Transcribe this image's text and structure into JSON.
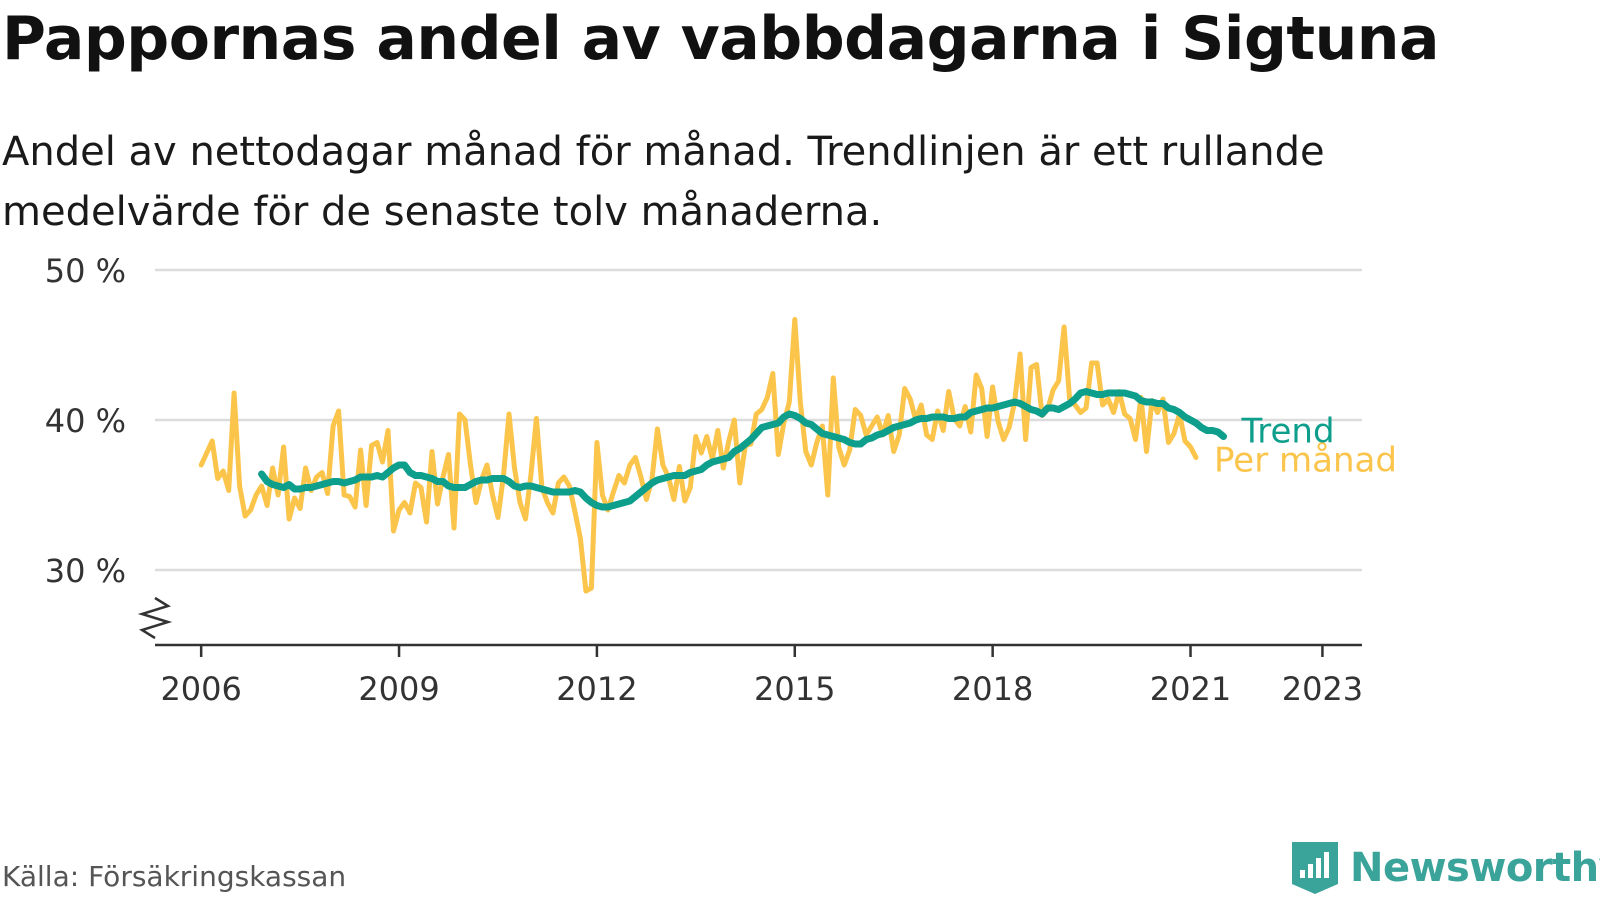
{
  "title": "Pappornas andel av vabbdagarna i Sigtuna",
  "subtitle": "Andel av nettodagar månad för månad. Trendlinjen är ett rullande medelvärde för de senaste tolv månaderna.",
  "source": "Källa: Försäkringskassan",
  "brand": "Newsworthy",
  "colors": {
    "trend": "#0d9e8c",
    "monthly": "#fbc44b",
    "grid": "#dcdcdc",
    "axis": "#333333",
    "brand": "#3aa39a"
  },
  "chart_data": {
    "type": "line",
    "x_unit": "year",
    "x_start": 2006.0,
    "x_step": 0.0833333,
    "ylim": [
      25,
      50
    ],
    "xlim": [
      2005.3,
      2023.6
    ],
    "yticks": [
      30,
      40,
      50
    ],
    "ytick_labels": [
      "30 %",
      "40 %",
      "50 %"
    ],
    "xticks": [
      2006,
      2009,
      2012,
      2015,
      2018,
      2021,
      2023
    ],
    "xtick_labels": [
      "2006",
      "2009",
      "2012",
      "2015",
      "2018",
      "2021",
      "2023"
    ],
    "axis_break": true,
    "grid": true,
    "series": [
      {
        "name": "Per månad",
        "color": "#fbc44b",
        "values": [
          37,
          37.8,
          38.6,
          36.1,
          36.6,
          35.3,
          41.8,
          35.6,
          33.6,
          34.0,
          35.0,
          35.6,
          34.3,
          36.8,
          35.0,
          38.2,
          33.4,
          34.8,
          34.1,
          36.8,
          35.3,
          36.2,
          36.5,
          35.1,
          39.6,
          40.6,
          35.0,
          34.9,
          34.2,
          38.0,
          34.3,
          38.3,
          38.5,
          37.2,
          39.3,
          32.6,
          34.0,
          34.5,
          33.8,
          35.8,
          35.5,
          33.2,
          37.9,
          34.4,
          36.2,
          37.7,
          32.8,
          40.4,
          40.0,
          37.0,
          34.5,
          36.0,
          37.0,
          35.0,
          33.5,
          36.3,
          40.4,
          36.8,
          34.5,
          33.4,
          36.4,
          40.1,
          35.5,
          34.5,
          33.8,
          35.8,
          36.2,
          35.6,
          33.9,
          32.1,
          28.6,
          28.8,
          38.5,
          35.0,
          34.0,
          35.2,
          36.3,
          35.8,
          37.0,
          37.5,
          36.2,
          34.7,
          36.0,
          39.4,
          37.0,
          36.2,
          34.7,
          36.9,
          34.6,
          35.5,
          38.9,
          37.8,
          38.9,
          37.4,
          39.3,
          36.8,
          38.6,
          40.0,
          35.8,
          38.3,
          38.4,
          40.4,
          40.7,
          41.5,
          43.1,
          37.7,
          39.8,
          41.2,
          46.7,
          41.2,
          37.9,
          37.0,
          38.5,
          39.6,
          35.0,
          42.8,
          38.2,
          37.0,
          38.0,
          40.7,
          40.3,
          39.0,
          39.6,
          40.2,
          39.0,
          40.3,
          37.9,
          39.0,
          42.1,
          41.4,
          40.0,
          41.0,
          39.0,
          38.7,
          40.6,
          39.3,
          41.9,
          40.1,
          39.6,
          40.9,
          39.2,
          43.0,
          42.1,
          38.9,
          42.2,
          39.9,
          38.7,
          39.5,
          41.2,
          44.4,
          38.7,
          43.5,
          43.7,
          40.3,
          40.7,
          42.0,
          42.6,
          46.2,
          41.4,
          41.0,
          40.5,
          40.8,
          43.8,
          43.8,
          41.0,
          41.4,
          40.5,
          41.9,
          40.4,
          40.1,
          38.7,
          41.5,
          37.9,
          41.3,
          40.5,
          41.4,
          38.5,
          39.1,
          40.4,
          38.6,
          38.2,
          37.5
        ]
      },
      {
        "name": "Trend",
        "color": "#0d9e8c",
        "start_index": 11,
        "values": [
          36.4,
          35.9,
          35.7,
          35.6,
          35.5,
          35.7,
          35.4,
          35.4,
          35.5,
          35.5,
          35.6,
          35.7,
          35.8,
          35.9,
          35.9,
          35.8,
          35.9,
          36.0,
          36.2,
          36.2,
          36.2,
          36.3,
          36.2,
          36.5,
          36.8,
          37.0,
          37.0,
          36.5,
          36.3,
          36.3,
          36.2,
          36.1,
          35.9,
          35.9,
          35.6,
          35.5,
          35.5,
          35.5,
          35.7,
          35.9,
          36.0,
          36.0,
          36.1,
          36.1,
          36.1,
          35.9,
          35.6,
          35.5,
          35.6,
          35.6,
          35.5,
          35.4,
          35.3,
          35.2,
          35.2,
          35.2,
          35.2,
          35.3,
          35.2,
          34.8,
          34.5,
          34.3,
          34.2,
          34.2,
          34.3,
          34.4,
          34.5,
          34.6,
          34.9,
          35.2,
          35.5,
          35.8,
          36.0,
          36.1,
          36.2,
          36.3,
          36.3,
          36.3,
          36.5,
          36.6,
          36.7,
          37.0,
          37.2,
          37.3,
          37.4,
          37.5,
          37.9,
          38.1,
          38.4,
          38.7,
          39.1,
          39.5,
          39.6,
          39.7,
          39.8,
          40.2,
          40.4,
          40.3,
          40.1,
          39.8,
          39.7,
          39.4,
          39.1,
          39.0,
          38.9,
          38.8,
          38.7,
          38.5,
          38.4,
          38.4,
          38.7,
          38.8,
          39.0,
          39.1,
          39.3,
          39.5,
          39.6,
          39.7,
          39.8,
          40.0,
          40.1,
          40.1,
          40.2,
          40.2,
          40.2,
          40.1,
          40.1,
          40.2,
          40.2,
          40.5,
          40.6,
          40.7,
          40.8,
          40.8,
          40.9,
          41.0,
          41.1,
          41.2,
          41.1,
          40.9,
          40.7,
          40.6,
          40.4,
          40.8,
          40.8,
          40.7,
          40.9,
          41.1,
          41.4,
          41.8,
          41.9,
          41.8,
          41.7,
          41.7,
          41.8,
          41.8,
          41.8,
          41.8,
          41.7,
          41.6,
          41.3,
          41.2,
          41.2,
          41.1,
          41.1,
          40.8,
          40.7,
          40.5,
          40.2,
          40.0,
          39.8,
          39.5,
          39.3,
          39.3,
          39.2,
          38.9
        ]
      }
    ]
  }
}
